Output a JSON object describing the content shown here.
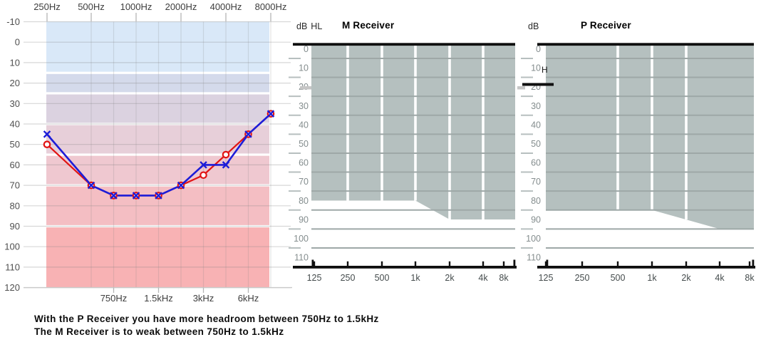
{
  "footer": {
    "line1": "With the P Receiver you have more headroom between 750Hz to 1.5kHz",
    "line2": "The M Receiver is to weak between 750Hz to 1.5kHz"
  },
  "chart_data": [
    {
      "id": "audiogram",
      "type": "line",
      "x_scale": "log-frequency",
      "ylim": [
        -10,
        120
      ],
      "ylabel_ticks": [
        -10,
        0,
        10,
        20,
        30,
        40,
        50,
        60,
        70,
        80,
        90,
        100,
        110,
        120
      ],
      "frequencies": [
        250,
        500,
        750,
        1000,
        1500,
        2000,
        3000,
        4000,
        6000,
        8000
      ],
      "top_axis_freqs": [
        250,
        500,
        1000,
        2000,
        4000,
        8000
      ],
      "top_axis_labels": [
        "250Hz",
        "500Hz",
        "1000Hz",
        "2000Hz",
        "4000Hz",
        "8000Hz"
      ],
      "bottom_axis_freqs": [
        750,
        1500,
        3000,
        6000
      ],
      "bottom_axis_labels": [
        "750Hz",
        "1.5kHz",
        "3kHz",
        "6kHz"
      ],
      "series": [
        {
          "name": "x-series",
          "marker": "x",
          "color": "#1d1dd8",
          "values": [
            [
              250,
              45
            ],
            [
              500,
              70
            ],
            [
              750,
              75
            ],
            [
              1000,
              75
            ],
            [
              1500,
              75
            ],
            [
              2000,
              70
            ],
            [
              3000,
              60
            ],
            [
              4000,
              60
            ],
            [
              6000,
              45
            ],
            [
              8000,
              35
            ]
          ]
        },
        {
          "name": "o-series",
          "marker": "o",
          "color": "#e11414",
          "values": [
            [
              250,
              50
            ],
            [
              500,
              70
            ],
            [
              750,
              75
            ],
            [
              1000,
              75
            ],
            [
              1500,
              75
            ],
            [
              2000,
              70
            ],
            [
              3000,
              65
            ],
            [
              4000,
              55
            ],
            [
              6000,
              45
            ],
            [
              8000,
              35
            ]
          ]
        }
      ],
      "severity_bands": [
        {
          "range": [
            -10,
            15
          ],
          "color": "#d9e8f8"
        },
        {
          "range": [
            15,
            25
          ],
          "color": "#d4daeb"
        },
        {
          "range": [
            25,
            40
          ],
          "color": "#dbd2e0"
        },
        {
          "range": [
            40,
            55
          ],
          "color": "#e7cfd9"
        },
        {
          "range": [
            55,
            70
          ],
          "color": "#efc8d0"
        },
        {
          "range": [
            70,
            90
          ],
          "color": "#f4bec3"
        },
        {
          "range": [
            90,
            120
          ],
          "color": "#f8b2b4"
        }
      ]
    },
    {
      "id": "m-receiver",
      "type": "area",
      "title": "M Receiver",
      "unit_label": "dB",
      "unit_label2": "HL",
      "ylim": [
        0,
        110
      ],
      "y_labels": [
        0,
        10,
        20,
        30,
        40,
        50,
        60,
        70,
        80,
        90,
        100,
        110
      ],
      "x_freqs": [
        125,
        250,
        500,
        1000,
        2000,
        4000,
        8000
      ],
      "x_labels": [
        "125",
        "250",
        "500",
        "1k",
        "2k",
        "4k",
        "8k"
      ],
      "fill_color": "#b5c0bf",
      "fitting_range_lower_edge": [
        [
          125,
          80
        ],
        [
          1000,
          80
        ],
        [
          2000,
          90
        ],
        [
          8000,
          90
        ]
      ],
      "white_gridline_freqs": [
        250,
        500,
        1000,
        2000,
        4000
      ]
    },
    {
      "id": "p-receiver",
      "type": "area",
      "title": "P Receiver",
      "unit_label": "dB",
      "stray_text": "H",
      "ylim": [
        0,
        110
      ],
      "y_labels": [
        0,
        10,
        20,
        30,
        40,
        50,
        60,
        70,
        80,
        90,
        100,
        110
      ],
      "x_freqs": [
        125,
        250,
        500,
        1000,
        2000,
        4000,
        8000
      ],
      "x_labels": [
        "125",
        "250",
        "500",
        "1k",
        "2k",
        "4k",
        "8k"
      ],
      "fill_color": "#b5c0bf",
      "fitting_range_lower_edge": [
        [
          125,
          85
        ],
        [
          1000,
          85
        ],
        [
          4000,
          95
        ],
        [
          8000,
          95
        ]
      ],
      "white_gridline_freqs": [
        500,
        1000,
        2000
      ]
    }
  ]
}
